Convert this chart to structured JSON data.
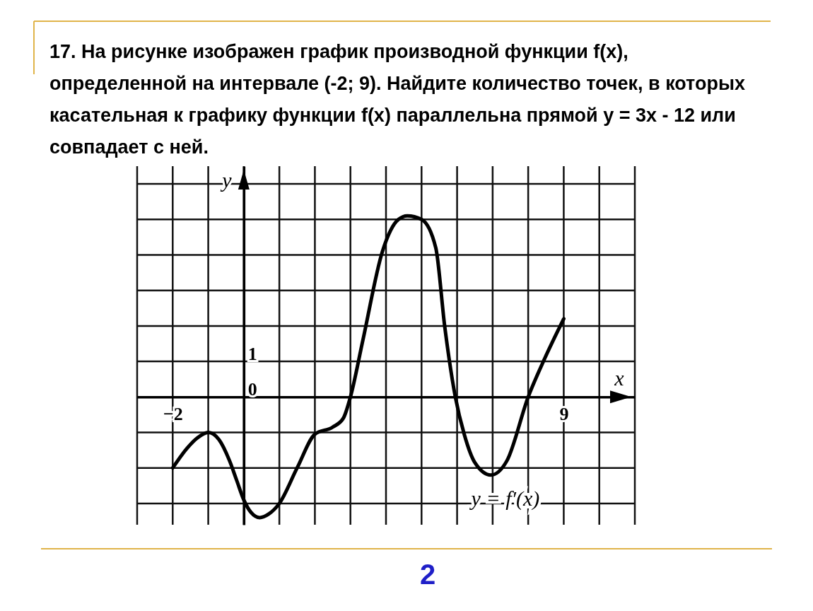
{
  "chart_data": {
    "type": "line",
    "title": "17. На рисунке изображен график производной функции f(x), определенной на интервале (-2; 9). Найдите количество точек, в которых касательная к графику функции f(x) параллельна прямой y = 3x - 12 или совпадает с ней.",
    "xlabel": "x",
    "ylabel": "y",
    "series": [
      {
        "color": "#000000",
        "x": [
          -2,
          -1.6,
          -1.3,
          -1,
          -0.7,
          -0.4,
          -0.2,
          0,
          0.2,
          0.45,
          0.7,
          1,
          1.5,
          2,
          2.5,
          2.8,
          3,
          3.35,
          3.9,
          4.35,
          4.6,
          5,
          5.4,
          5.65,
          5.95,
          6.2,
          6.5,
          6.95,
          7.4,
          8,
          8.45,
          9
        ],
        "values": [
          -2,
          -1.45,
          -1.15,
          -1,
          -1.2,
          -1.8,
          -2.35,
          -2.9,
          -3.25,
          -3.4,
          -3.3,
          -3,
          -2,
          -1.05,
          -0.85,
          -0.6,
          0,
          1.6,
          4.1,
          5,
          5.1,
          5,
          4.2,
          2,
          0,
          -1.05,
          -1.85,
          -2.2,
          -1.8,
          0,
          1.05,
          2.2
        ]
      }
    ],
    "xlim": [
      -3,
      11
    ],
    "ylim": [
      -3.6,
      6.5
    ],
    "xticks": [
      {
        "value": -3,
        "label": null
      },
      {
        "value": -2,
        "label": "−2"
      },
      {
        "value": -1,
        "label": null
      },
      {
        "value": 0,
        "label": null
      },
      {
        "value": 1,
        "label": null
      },
      {
        "value": 2,
        "label": null
      },
      {
        "value": 3,
        "label": null
      },
      {
        "value": 4,
        "label": null
      },
      {
        "value": 5,
        "label": null
      },
      {
        "value": 6,
        "label": null
      },
      {
        "value": 7,
        "label": null
      },
      {
        "value": 8,
        "label": null
      },
      {
        "value": 9,
        "label": "9"
      },
      {
        "value": 10,
        "label": null
      },
      {
        "value": 11,
        "label": null
      }
    ],
    "yticks": [
      {
        "value": -3,
        "label": null
      },
      {
        "value": -2,
        "label": null
      },
      {
        "value": -1,
        "label": null
      },
      0,
      1,
      {
        "value": 2,
        "label": null
      },
      {
        "value": 3,
        "label": null
      },
      {
        "value": 4,
        "label": null
      },
      {
        "value": 5,
        "label": null
      },
      {
        "value": 6,
        "label": null
      }
    ],
    "grid": true,
    "line_style": "solid",
    "marker": "none",
    "annotations": [
      "y = f′(x)",
      "2"
    ]
  }
}
